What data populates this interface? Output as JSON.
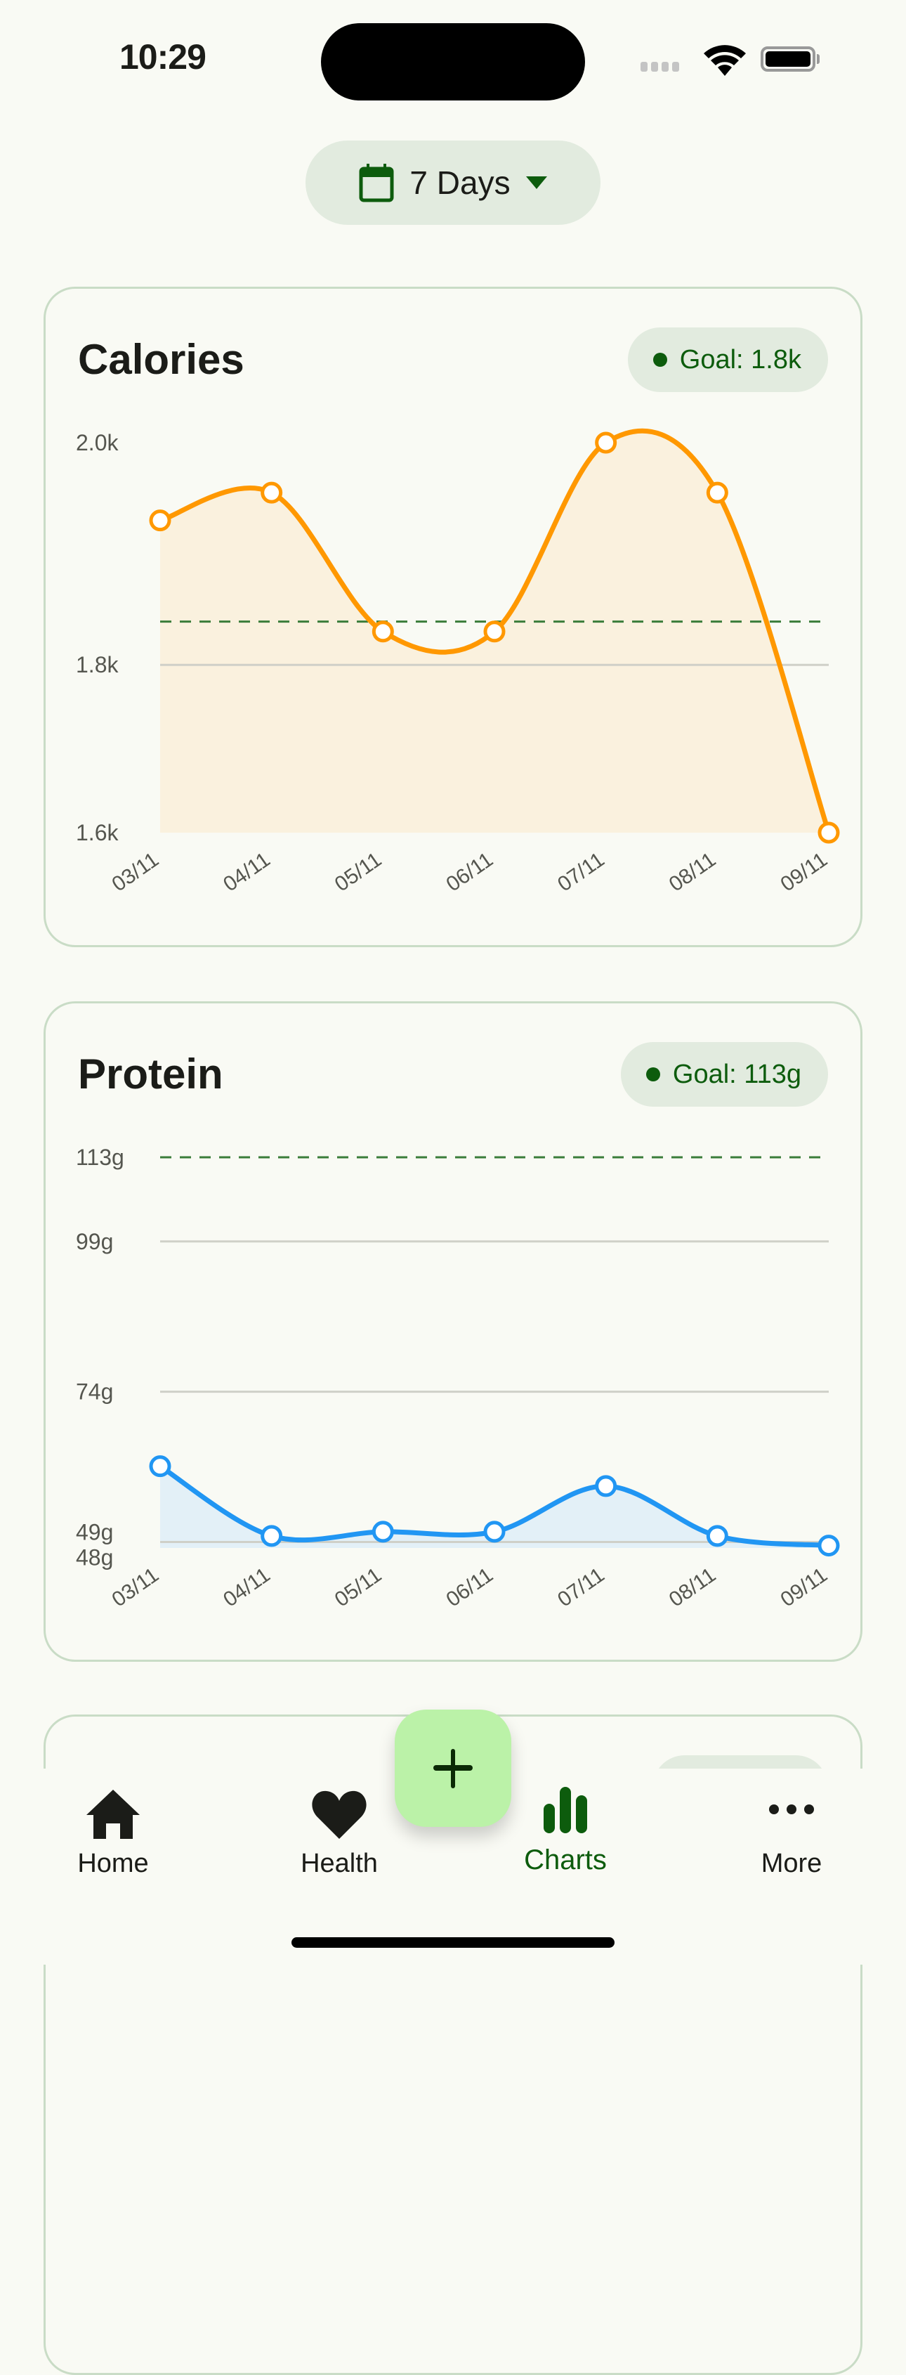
{
  "status_bar": {
    "time": "10:29"
  },
  "range_selector": {
    "label": "7 Days",
    "icon": "calendar-icon",
    "caret": "caret-down-icon"
  },
  "colors": {
    "accent": "#0d5c0d",
    "calories": "#ff9800",
    "protein": "#2196f3",
    "goal_line": "#3a7d3a",
    "fab": "#bbf2a8"
  },
  "cards": [
    {
      "title": "Calories",
      "goal_badge": "Goal: 1.8k"
    },
    {
      "title": "Protein",
      "goal_badge": "Goal: 113g"
    }
  ],
  "chart_data": [
    {
      "type": "line",
      "title": "Calories",
      "categories": [
        "03/11",
        "04/11",
        "05/11",
        "06/11",
        "07/11",
        "08/11",
        "09/11"
      ],
      "values": [
        1930,
        1955,
        1830,
        1830,
        2000,
        1955,
        1649
      ],
      "goal": 1839,
      "ylim": [
        1649,
        2000
      ],
      "gridlines": [
        1800
      ],
      "yticks": [
        {
          "value": 2000,
          "label": "2.0k"
        },
        {
          "value": 1800,
          "label": "1.8k"
        },
        {
          "value": 1649,
          "label": "1.6k"
        }
      ],
      "color": "#ff9800",
      "fill": "#faf1de"
    },
    {
      "type": "line",
      "title": "Protein",
      "categories": [
        "03/11",
        "04/11",
        "05/11",
        "06/11",
        "07/11",
        "08/11",
        "09/11"
      ],
      "values": [
        61.6,
        50,
        50.7,
        50.7,
        58.3,
        50,
        48.4
      ],
      "goal": 113,
      "ylim": [
        48,
        113
      ],
      "gridlines": [
        99,
        74,
        49
      ],
      "yticks": [
        {
          "value": 113,
          "label": "113g"
        },
        {
          "value": 99,
          "label": "99g"
        },
        {
          "value": 74,
          "label": "74g"
        },
        {
          "value": 49,
          "label": "49g"
        },
        {
          "value": 48,
          "label": "48g"
        }
      ],
      "color": "#2196f3",
      "fill": "#e3f0f7"
    }
  ],
  "nav": {
    "items": [
      {
        "label": "Home",
        "icon": "home-icon"
      },
      {
        "label": "Health",
        "icon": "heart-icon"
      },
      {
        "label": "Charts",
        "icon": "bar-chart-icon",
        "active": true
      },
      {
        "label": "More",
        "icon": "more-icon"
      }
    ],
    "fab_icon": "plus-icon"
  }
}
